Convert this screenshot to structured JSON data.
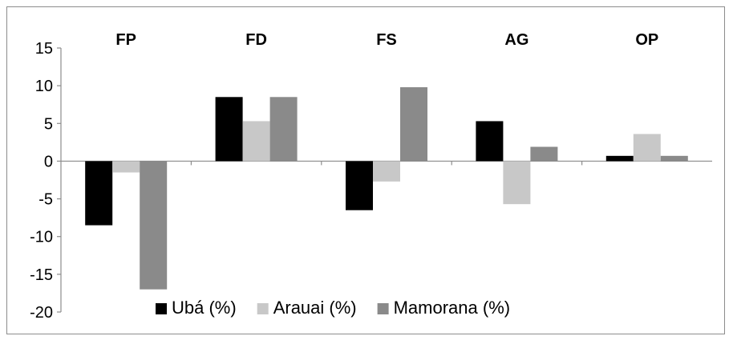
{
  "chart_data": {
    "type": "bar",
    "categories": [
      "FP",
      "FD",
      "FS",
      "AG",
      "OP"
    ],
    "series": [
      {
        "name": "Ubá (%)",
        "color": "#000000",
        "values": [
          -8.5,
          8.5,
          -6.5,
          5.3,
          0.7
        ]
      },
      {
        "name": "Arauai (%)",
        "color": "#c8c8c8",
        "values": [
          -1.5,
          5.3,
          -2.7,
          -5.7,
          3.6
        ]
      },
      {
        "name": "Mamorana (%)",
        "color": "#8a8a8a",
        "values": [
          -17,
          8.5,
          9.8,
          1.9,
          0.7
        ]
      }
    ],
    "ylim": [
      -20,
      15
    ],
    "yticks": [
      15,
      10,
      5,
      0,
      -5,
      -10,
      -15,
      -20
    ],
    "grid": false,
    "legend": "bottom",
    "title": "",
    "xlabel": "",
    "ylabel": ""
  }
}
